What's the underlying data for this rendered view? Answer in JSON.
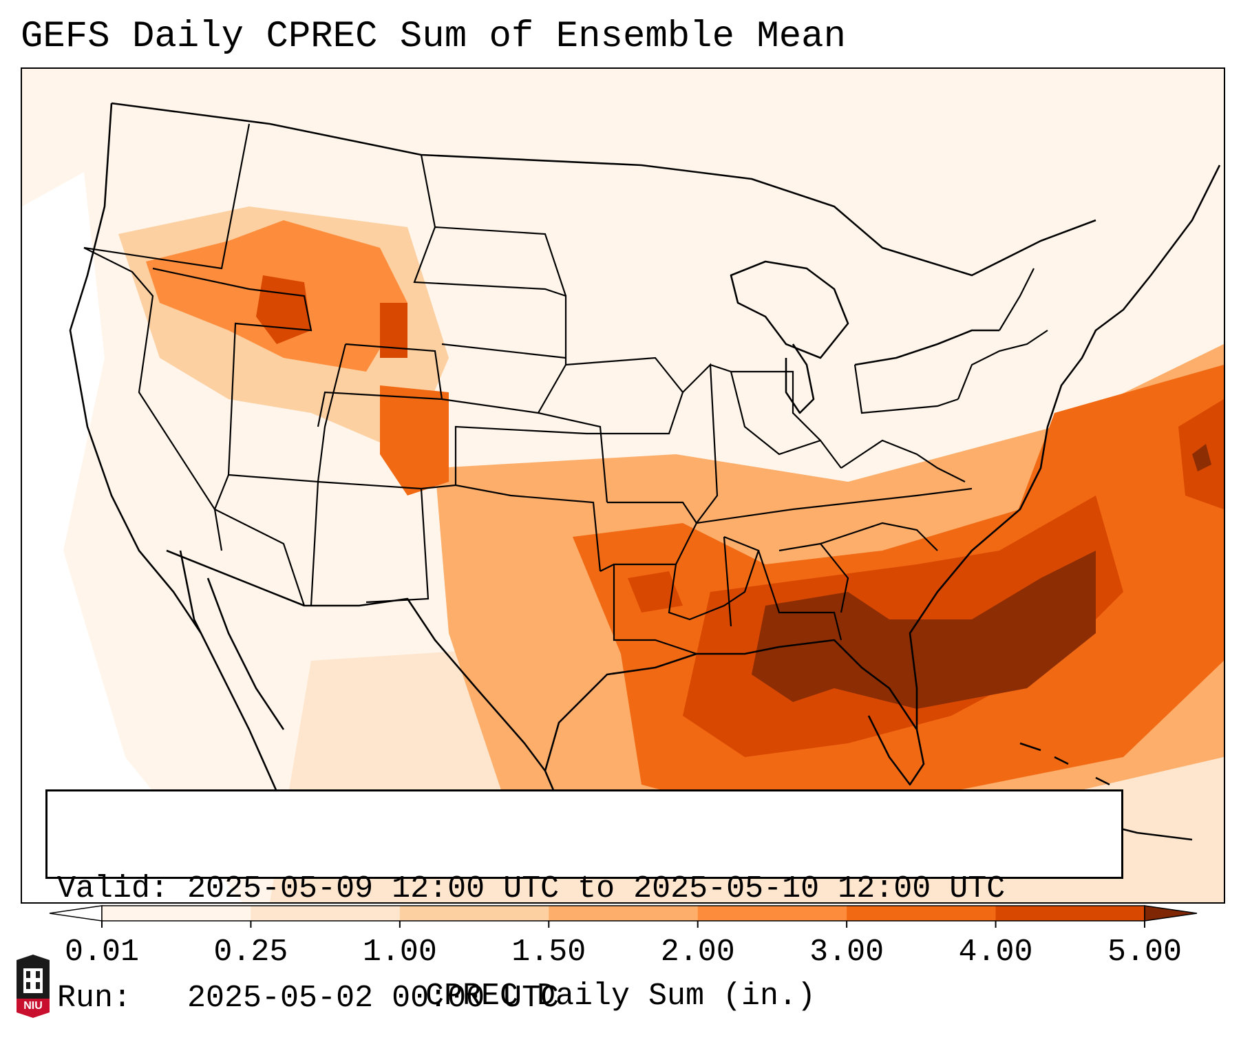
{
  "title": "GEFS Daily CPREC Sum of Ensemble Mean",
  "valid_box": {
    "valid_line": "Valid: 2025-05-09 12:00 UTC to 2025-05-10 12:00 UTC",
    "run_line": "Run:   2025-05-02 00:00 UTC"
  },
  "colorbar": {
    "label": "CPREC Daily Sum (in.)",
    "ticks": [
      "0.01",
      "0.25",
      "1.00",
      "1.50",
      "2.00",
      "3.00",
      "4.00",
      "5.00"
    ],
    "colors": [
      "#fff5eb",
      "#fee6ce",
      "#fdd0a2",
      "#fdae6b",
      "#fd8d3c",
      "#f16913",
      "#d94801",
      "#8c2d04"
    ],
    "under_color": "#ffffff",
    "over_color": "#7f2704"
  },
  "colors": {
    "background": "#fff5eb",
    "border": "#000000",
    "niu_red": "#c8102e",
    "niu_black": "#1a1a1a"
  },
  "logo": {
    "text": "NIU",
    "icon": "niu-tower-icon"
  }
}
